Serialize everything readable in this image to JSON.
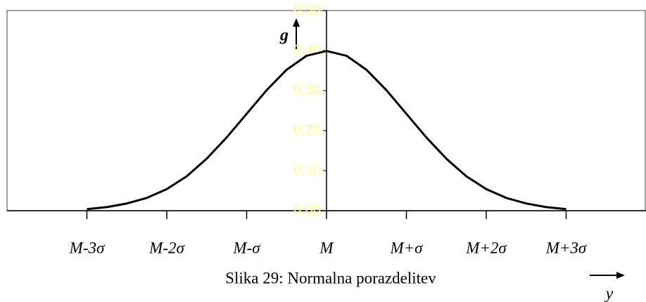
{
  "chart_data": {
    "type": "line",
    "caption": "Slika 29:  Normalna porazdelitev",
    "y_label": "g",
    "x_label": "y",
    "x": [
      -3,
      -2.75,
      -2.5,
      -2.25,
      -2,
      -1.75,
      -1.5,
      -1.25,
      -1,
      -0.75,
      -0.5,
      -0.25,
      0,
      0.25,
      0.5,
      0.75,
      1,
      1.25,
      1.5,
      1.75,
      2,
      2.25,
      2.5,
      2.75,
      3
    ],
    "series": [
      {
        "color": "#000000",
        "values": [
          0.004,
          0.009,
          0.018,
          0.032,
          0.054,
          0.086,
          0.13,
          0.183,
          0.242,
          0.301,
          0.352,
          0.387,
          0.399,
          0.387,
          0.352,
          0.301,
          0.242,
          0.183,
          0.13,
          0.086,
          0.054,
          0.032,
          0.018,
          0.009,
          0.004
        ]
      }
    ],
    "xlim": [
      -4,
      4
    ],
    "xticks": [
      {
        "value": -3,
        "label": "M-3σ"
      },
      {
        "value": -2,
        "label": "M-2σ"
      },
      {
        "value": -1,
        "label": "M-σ"
      },
      {
        "value": 0,
        "label": "M"
      },
      {
        "value": 1,
        "label": "M+σ"
      },
      {
        "value": 2,
        "label": "M+2σ"
      },
      {
        "value": 3,
        "label": "M+3σ"
      }
    ],
    "ylim": [
      0,
      0.5
    ],
    "yticks": [
      {
        "value": 0,
        "label": "0,00"
      },
      {
        "value": 0.1,
        "label": "0,10"
      },
      {
        "value": 0.2,
        "label": "0,20"
      },
      {
        "value": 0.3,
        "label": "0,30"
      },
      {
        "value": 0.4,
        "label": "0,40"
      },
      {
        "value": 0.5,
        "label": "0,50"
      }
    ],
    "grid": false
  }
}
